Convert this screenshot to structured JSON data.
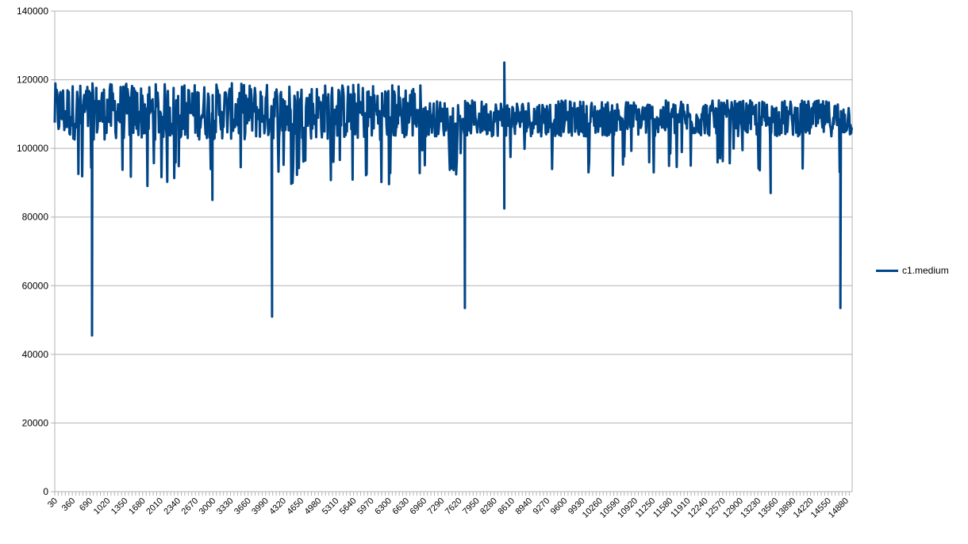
{
  "chart_data": {
    "type": "line",
    "title": "",
    "xlabel": "",
    "ylabel": "",
    "ylim": [
      0,
      140000
    ],
    "yticks": [
      0,
      20000,
      40000,
      60000,
      80000,
      100000,
      120000,
      140000
    ],
    "x_range": [
      30,
      15000
    ],
    "xtick_labels": [
      "30",
      "360",
      "690",
      "1020",
      "1350",
      "1680",
      "2010",
      "2340",
      "2670",
      "3000",
      "3330",
      "3660",
      "3990",
      "4320",
      "4650",
      "4980",
      "5310",
      "5640",
      "5970",
      "6300",
      "6630",
      "6960",
      "7290",
      "7620",
      "7950",
      "8280",
      "8610",
      "8940",
      "9270",
      "9600",
      "9930",
      "10260",
      "10590",
      "10920",
      "11250",
      "11580",
      "11910",
      "12240",
      "12570",
      "12900",
      "13230",
      "13560",
      "13890",
      "14220",
      "14550",
      "14880"
    ],
    "grid": "horizontal",
    "legend_position": "right",
    "series": [
      {
        "name": "c1.medium",
        "color": "#004586",
        "description": "Noisy series oscillating mostly between ~95000 and ~119000; first ~45% ranges ~97000-119000, remainder ~100000-114000",
        "segments": [
          {
            "x_start": 30,
            "x_end": 6900,
            "low": 97000,
            "high": 119000
          },
          {
            "x_start": 6900,
            "x_end": 15000,
            "low": 100000,
            "high": 114000
          }
        ],
        "notable_points": [
          {
            "x": 730,
            "y": 45500,
            "note": "deep dip"
          },
          {
            "x": 4110,
            "y": 51000,
            "note": "deep dip"
          },
          {
            "x": 7730,
            "y": 53500,
            "note": "deep dip"
          },
          {
            "x": 8470,
            "y": 125000,
            "note": "spike"
          },
          {
            "x": 8470,
            "y": 82500,
            "note": "dip"
          },
          {
            "x": 2990,
            "y": 85000,
            "note": "dip"
          },
          {
            "x": 13470,
            "y": 87000,
            "note": "dip"
          },
          {
            "x": 14780,
            "y": 53500,
            "note": "deep dip"
          }
        ]
      }
    ]
  },
  "legend": {
    "items": [
      {
        "label": "c1.medium",
        "color": "#004586"
      }
    ]
  }
}
